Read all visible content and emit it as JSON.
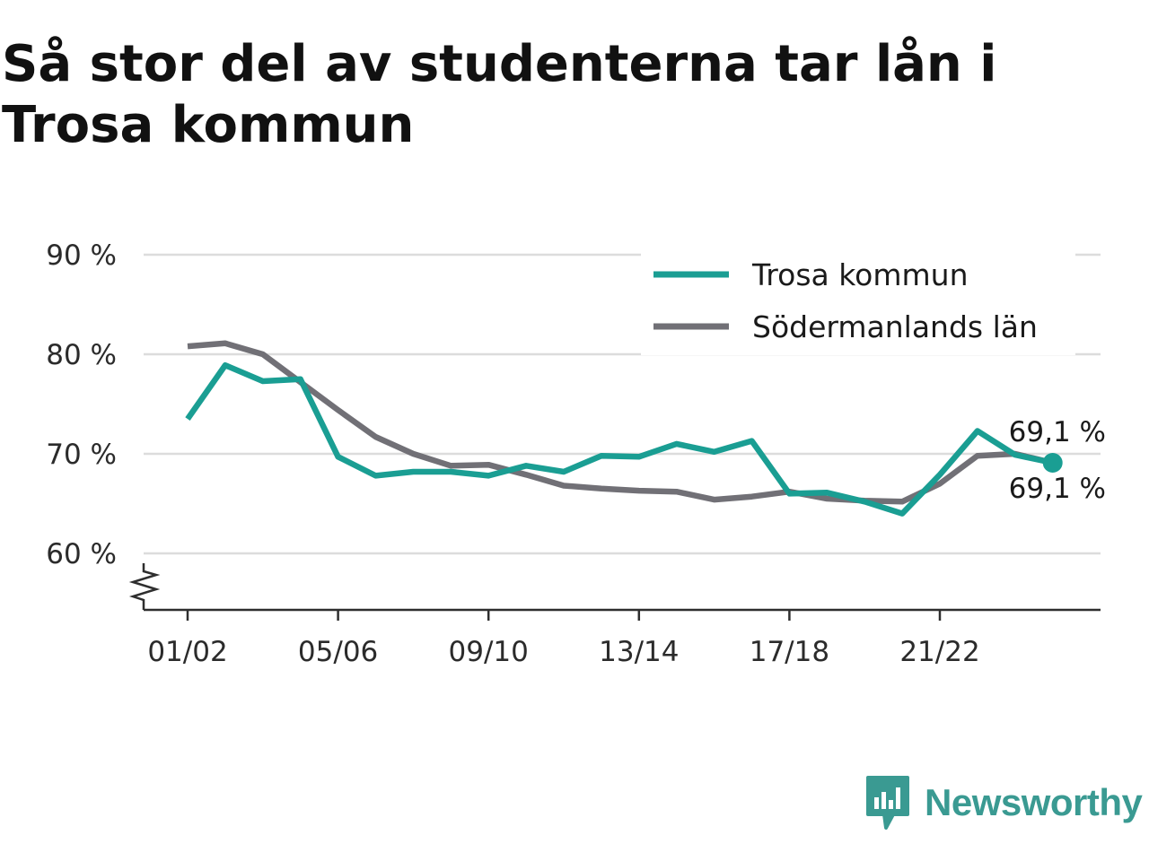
{
  "title": "Så stor del av studenterna tar lån i Trosa kommun",
  "brand": {
    "name": "Newsworthy",
    "icon": "bar-chart-speech-bubble-icon",
    "color": "#3a9a92"
  },
  "chart_data": {
    "type": "line",
    "title": "Så stor del av studenterna tar lån i Trosa kommun",
    "xlabel": "",
    "ylabel": "",
    "categories": [
      "01/02",
      "02/03",
      "03/04",
      "04/05",
      "05/06",
      "06/07",
      "07/08",
      "08/09",
      "09/10",
      "10/11",
      "11/12",
      "12/13",
      "13/14",
      "14/15",
      "15/16",
      "16/17",
      "17/18",
      "18/19",
      "19/20",
      "20/21",
      "21/22",
      "22/23",
      "23/24",
      "24/25"
    ],
    "x_tick_labels": [
      "01/02",
      "05/06",
      "09/10",
      "13/14",
      "17/18",
      "21/22"
    ],
    "y_ticks": [
      60,
      70,
      80,
      90
    ],
    "y_tick_labels": [
      "60 %",
      "70 %",
      "80 %",
      "90 %"
    ],
    "ylim": [
      54.2,
      91
    ],
    "y_axis_break": true,
    "grid": true,
    "legend_position": "top-right",
    "series": [
      {
        "name": "Trosa kommun",
        "color": "#1a9e93",
        "values": [
          73.5,
          78.9,
          77.3,
          77.5,
          69.7,
          67.8,
          68.2,
          68.2,
          67.8,
          68.8,
          68.2,
          69.8,
          69.7,
          71.0,
          70.2,
          71.3,
          66.0,
          66.1,
          65.2,
          64.0,
          67.9,
          72.3,
          69.9,
          69.1
        ],
        "end_label": "69,1 %",
        "end_marker": true
      },
      {
        "name": "Södermanlands län",
        "color": "#717076",
        "values": [
          80.8,
          81.1,
          80.0,
          77.2,
          74.4,
          71.7,
          70.0,
          68.8,
          68.9,
          67.9,
          66.8,
          66.5,
          66.3,
          66.2,
          65.4,
          65.7,
          66.2,
          65.5,
          65.3,
          65.2,
          67.0,
          69.8,
          70.0,
          69.1
        ],
        "end_label": "69,1 %",
        "end_marker": false
      }
    ]
  }
}
